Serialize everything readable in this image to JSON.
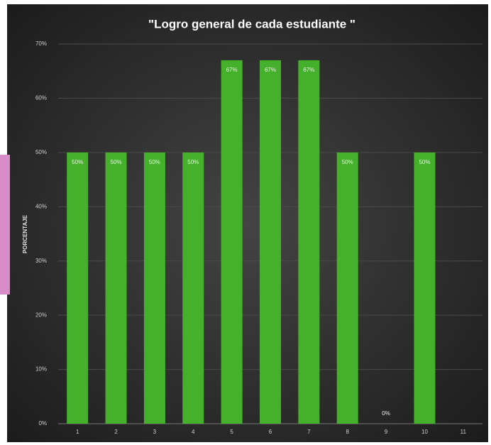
{
  "chart_data": {
    "type": "bar",
    "title": "\"Logro general de cada estudiante  \"",
    "y_label": "PORCENTAJE",
    "categories": [
      "1",
      "2",
      "3",
      "4",
      "5",
      "6",
      "7",
      "8",
      "9",
      "10",
      "11"
    ],
    "values": [
      50,
      50,
      50,
      50,
      67,
      67,
      67,
      50,
      0,
      50,
      null
    ],
    "value_labels": [
      "50%",
      "50%",
      "50%",
      "50%",
      "67%",
      "67%",
      "67%",
      "50%",
      "0%",
      "50%",
      null
    ],
    "color": "#45b02c",
    "ylim": [
      0,
      70
    ],
    "yticks": [
      {
        "value": 0,
        "label": "0%"
      },
      {
        "value": 10,
        "label": "10%"
      },
      {
        "value": 20,
        "label": "20%"
      },
      {
        "value": 30,
        "label": "30%"
      },
      {
        "value": 40,
        "label": "40%"
      },
      {
        "value": 50,
        "label": "50%"
      },
      {
        "value": 60,
        "label": "60%"
      },
      {
        "value": 70,
        "label": "70%"
      }
    ],
    "grid": true
  }
}
